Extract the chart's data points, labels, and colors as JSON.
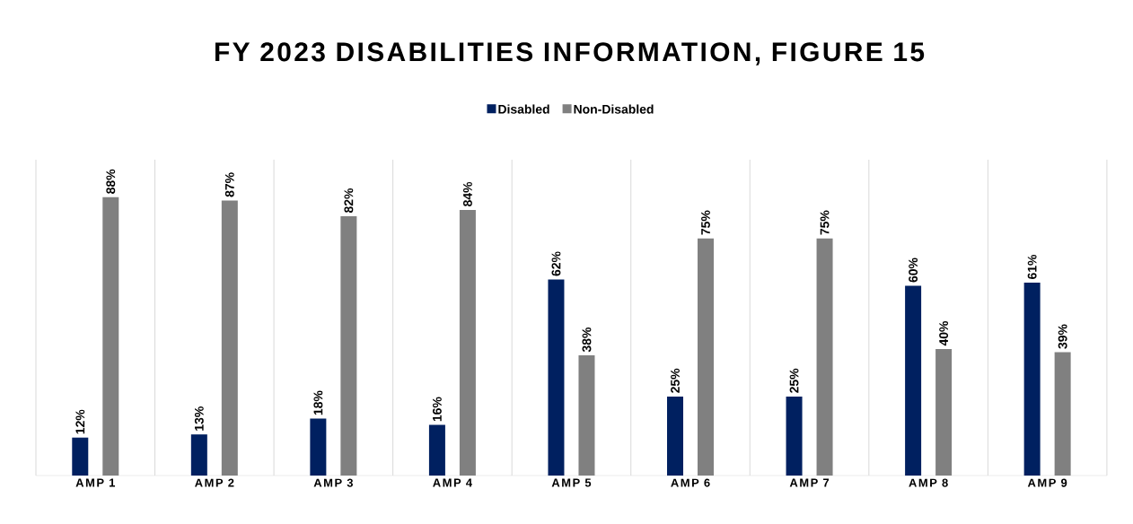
{
  "chart_data": {
    "type": "bar",
    "title": "FY 2023 DISABILITIES INFORMATION, FIGURE 15",
    "categories": [
      "AMP 1",
      "AMP 2",
      "AMP 3",
      "AMP 4",
      "AMP 5",
      "AMP 6",
      "AMP 7",
      "AMP 8",
      "AMP 9"
    ],
    "series": [
      {
        "name": "Disabled",
        "color": "#002060",
        "values": [
          12,
          13,
          18,
          16,
          62,
          25,
          25,
          60,
          61
        ],
        "value_labels": [
          "12%",
          "13%",
          "18%",
          "16%",
          "62%",
          "25%",
          "25%",
          "60%",
          "61%"
        ]
      },
      {
        "name": "Non-Disabled",
        "color": "#808080",
        "values": [
          88,
          87,
          82,
          84,
          38,
          75,
          75,
          40,
          39
        ],
        "value_labels": [
          "88%",
          "87%",
          "82%",
          "84%",
          "38%",
          "75%",
          "75%",
          "40%",
          "39%"
        ]
      }
    ],
    "legend": "top",
    "grid": "x",
    "tick_labels": "x"
  }
}
